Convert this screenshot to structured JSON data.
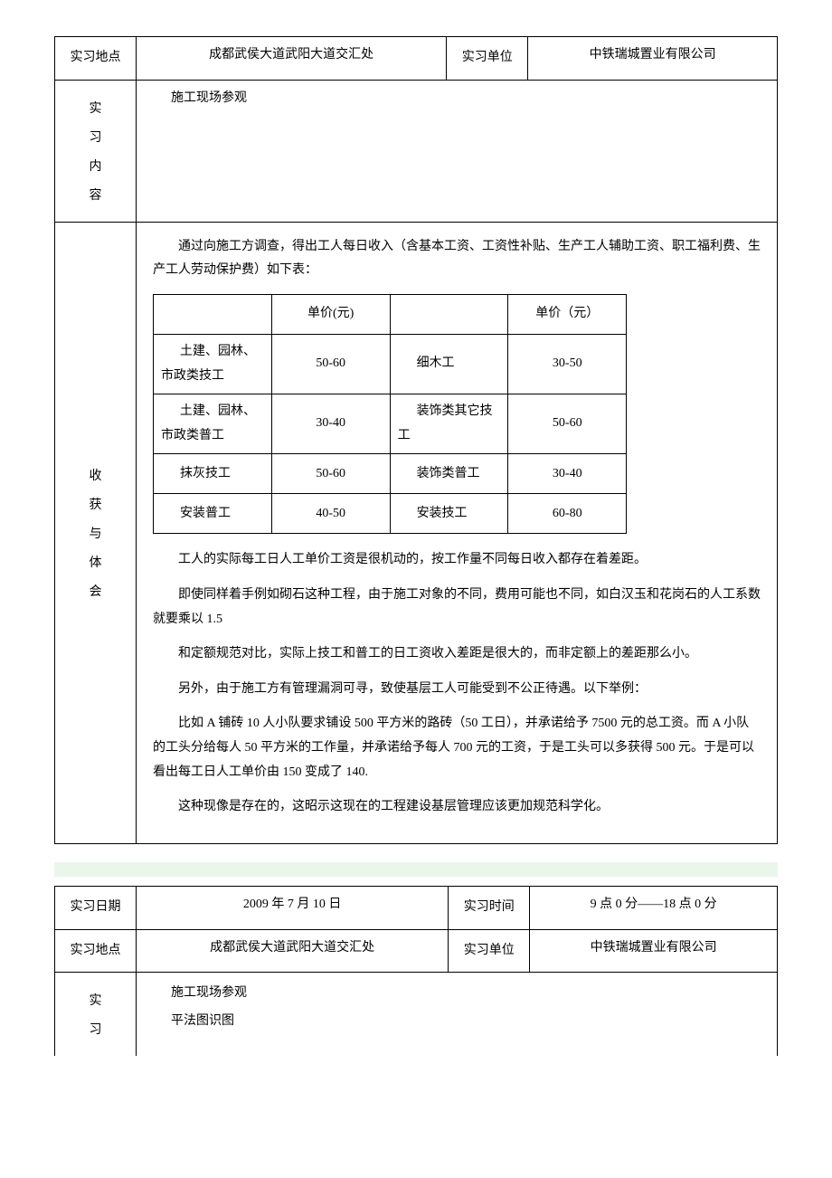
{
  "entry1": {
    "place_label": "实习地点",
    "place_value": "成都武侯大道武阳大道交汇处",
    "unit_label": "实习单位",
    "unit_value": "中铁瑞城置业有限公司",
    "content_label_chars": [
      "实",
      "习",
      "内",
      "容"
    ],
    "content_value": "施工现场参观",
    "reflect_label_chars": [
      "收",
      "获",
      "与",
      "体",
      "会"
    ],
    "intro": "通过向施工方调查，得出工人每日收入（含基本工资、工资性补贴、生产工人辅助工资、职工福利费、生产工人劳动保护费）如下表：",
    "price_header_a": "单价(元)",
    "price_header_b": "单价（元）",
    "wage_rows": [
      {
        "a": "土建、园林、市政类技工",
        "ap": "50-60",
        "b": "细木工",
        "bp": "30-50"
      },
      {
        "a": "土建、园林、市政类普工",
        "ap": "30-40",
        "b": "装饰类其它技工",
        "bp": "50-60"
      },
      {
        "a": "抹灰技工",
        "ap": "50-60",
        "b": "装饰类普工",
        "bp": "30-40"
      },
      {
        "a": "安装普工",
        "ap": "40-50",
        "b": "安装技工",
        "bp": "60-80"
      }
    ],
    "paras": [
      "工人的实际每工日人工单价工资是很机动的，按工作量不同每日收入都存在着差距。",
      "即使同样着手例如砌石这种工程，由于施工对象的不同，费用可能也不同，如白汉玉和花岗石的人工系数就要乘以 1.5",
      "和定额规范对比，实际上技工和普工的日工资收入差距是很大的，而非定额上的差距那么小。",
      "另外，由于施工方有管理漏洞可寻，致使基层工人可能受到不公正待遇。以下举例：",
      "比如 A 铺砖 10 人小队要求铺设 500 平方米的路砖（50 工日），并承诺给予 7500 元的总工资。而 A 小队的工头分给每人 50 平方米的工作量，并承诺给予每人 700 元的工资，于是工头可以多获得 500 元。于是可以看出每工日人工单价由 150 变成了 140.",
      "这种现像是存在的，这昭示这现在的工程建设基层管理应该更加规范科学化。"
    ]
  },
  "entry2": {
    "date_label": "实习日期",
    "date_value": "2009  年 7 月 10 日",
    "time_label": "实习时间",
    "time_value": "9 点 0 分——18 点 0 分",
    "place_label": "实习地点",
    "place_value": "成都武侯大道武阳大道交汇处",
    "unit_label": "实习单位",
    "unit_value": "中铁瑞城置业有限公司",
    "content_label_chars": [
      "实",
      "习"
    ],
    "content_lines": [
      "施工现场参观",
      "平法图识图"
    ]
  }
}
